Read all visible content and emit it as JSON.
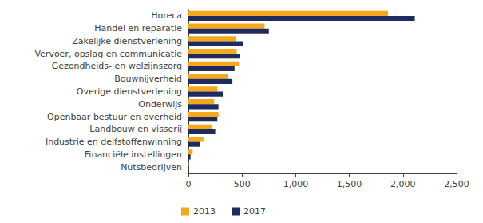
{
  "chart_data": {
    "type": "bar",
    "orientation": "horizontal",
    "categories": [
      "Horeca",
      "Handel en reparatie",
      "Zakelijke dienstverlening",
      "Vervoer, opslag en communicatie",
      "Gezondheids- en welzijnszorg",
      "Bouwnijverheid",
      "Overige dienstverlening",
      "Onderwijs",
      "Openbaar bestuur en overheid",
      "Landbouw en visserij",
      "Industrie en delfstoffenwinning",
      "Financiële instellingen",
      "Nutsbedrijven"
    ],
    "series": [
      {
        "name": "2013",
        "color": "#f5a81c",
        "values": [
          1860,
          710,
          440,
          450,
          470,
          370,
          270,
          240,
          280,
          220,
          140,
          40,
          3
        ]
      },
      {
        "name": "2017",
        "color": "#1f2b5e",
        "values": [
          2110,
          750,
          510,
          480,
          430,
          410,
          320,
          280,
          270,
          250,
          110,
          20,
          3
        ]
      }
    ],
    "xlim": [
      0,
      2500
    ],
    "xticks": [
      0,
      500,
      1000,
      1500,
      2000,
      2500
    ],
    "grid": false,
    "legend": "bottom"
  }
}
